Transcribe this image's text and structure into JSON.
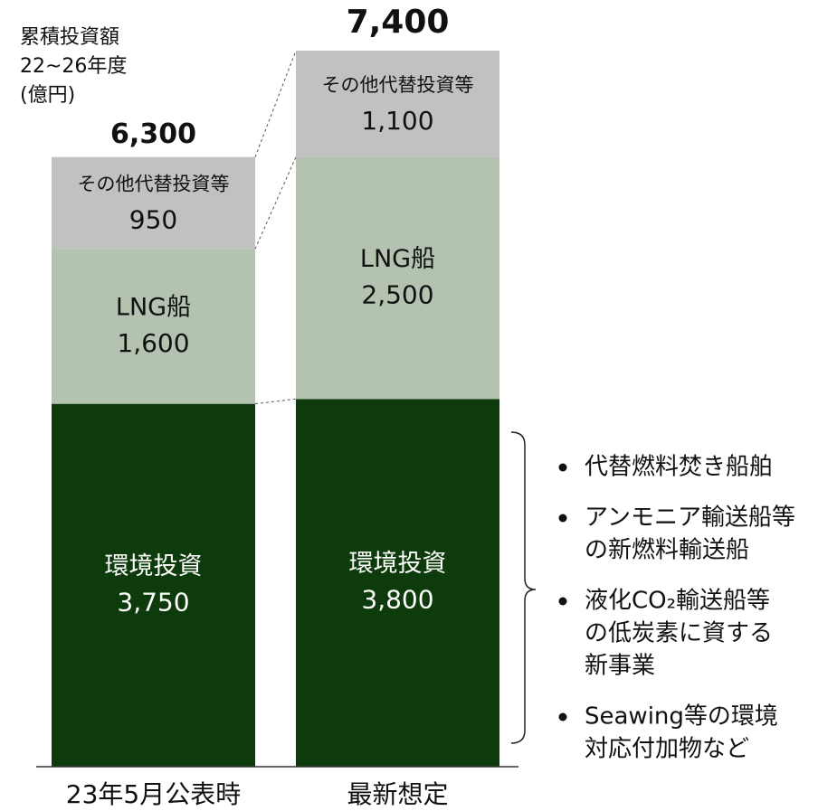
{
  "chart_data": {
    "type": "stacked_bar",
    "ylabel": [
      "累積投資額",
      "22~26年度",
      "(億円)"
    ],
    "categories": [
      "23年5月公表時",
      "最新想定"
    ],
    "series": [
      {
        "name": "環境投資",
        "color": "#0d3b0b",
        "values": [
          3750,
          3800
        ],
        "value_labels": [
          "3,750",
          "3,800"
        ]
      },
      {
        "name": "LNG船",
        "color": "#b3c3b0",
        "values": [
          1600,
          2500
        ],
        "value_labels": [
          "1,600",
          "2,500"
        ]
      },
      {
        "name": "その他代替投資等",
        "color": "#c1c1c1",
        "values": [
          950,
          1100
        ],
        "value_labels": [
          "950",
          "1,100"
        ]
      }
    ],
    "totals": [
      6300,
      7400
    ],
    "total_labels": [
      "6,300",
      "7,400"
    ],
    "bullets": [
      [
        "代替燃料焚き船舶"
      ],
      [
        "アンモニア輸送船等",
        "の新燃料輸送船"
      ],
      [
        "液化CO₂輸送船等",
        "の低炭素に資する",
        "新事業"
      ],
      [
        "Seawing等の環境",
        "対応付加物など"
      ]
    ]
  }
}
